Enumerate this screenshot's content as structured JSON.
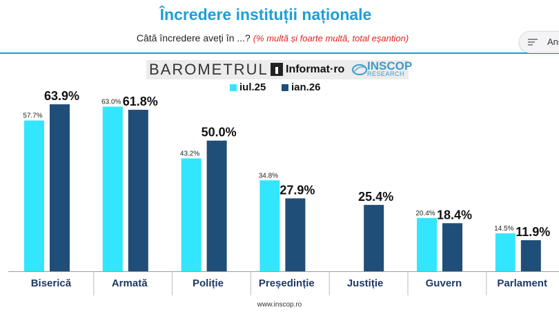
{
  "header": {
    "title": "Încredere instituții naționale",
    "subtitle": "Câtă încredere aveți în ...?",
    "subtitle_note": "(% multă și foarte multă, total eșantion)"
  },
  "side_button": {
    "label": "Ann",
    "icon": "lines-icon"
  },
  "logos": {
    "barometrul": "BAROMETRUL",
    "informat": "Informat·ro",
    "inscop": "INSCOP",
    "inscop_sub": "RESEARCH"
  },
  "legend": [
    {
      "label": "iul.25",
      "color": "#33e6ff"
    },
    {
      "label": "ian.26",
      "color": "#1f4e79"
    }
  ],
  "footer": {
    "url": "www.inscop.ro"
  },
  "chart_data": {
    "type": "bar",
    "categories": [
      "Biserică",
      "Armată",
      "Poliție",
      "Președinție",
      "Justiție",
      "Guvern",
      "Parlament"
    ],
    "series": [
      {
        "name": "iul.25",
        "color": "#33e6ff",
        "values": [
          57.7,
          63.0,
          43.2,
          34.8,
          null,
          20.4,
          14.5
        ],
        "labels": [
          "57.7%",
          "63.0%",
          "43.2%",
          "34.8%",
          "",
          "20.4%",
          "14.5%"
        ]
      },
      {
        "name": "ian.26",
        "color": "#1f4e79",
        "values": [
          63.9,
          61.8,
          50.0,
          27.9,
          25.4,
          18.4,
          11.9
        ],
        "labels": [
          "63.9%",
          "61.8%",
          "50.0%",
          "27.9%",
          "25.4%",
          "18.4%",
          "11.9%"
        ]
      }
    ],
    "title": "",
    "xlabel": "",
    "ylabel": "",
    "ylim": [
      0,
      70
    ],
    "grid": false,
    "legend_position": "top-center"
  }
}
